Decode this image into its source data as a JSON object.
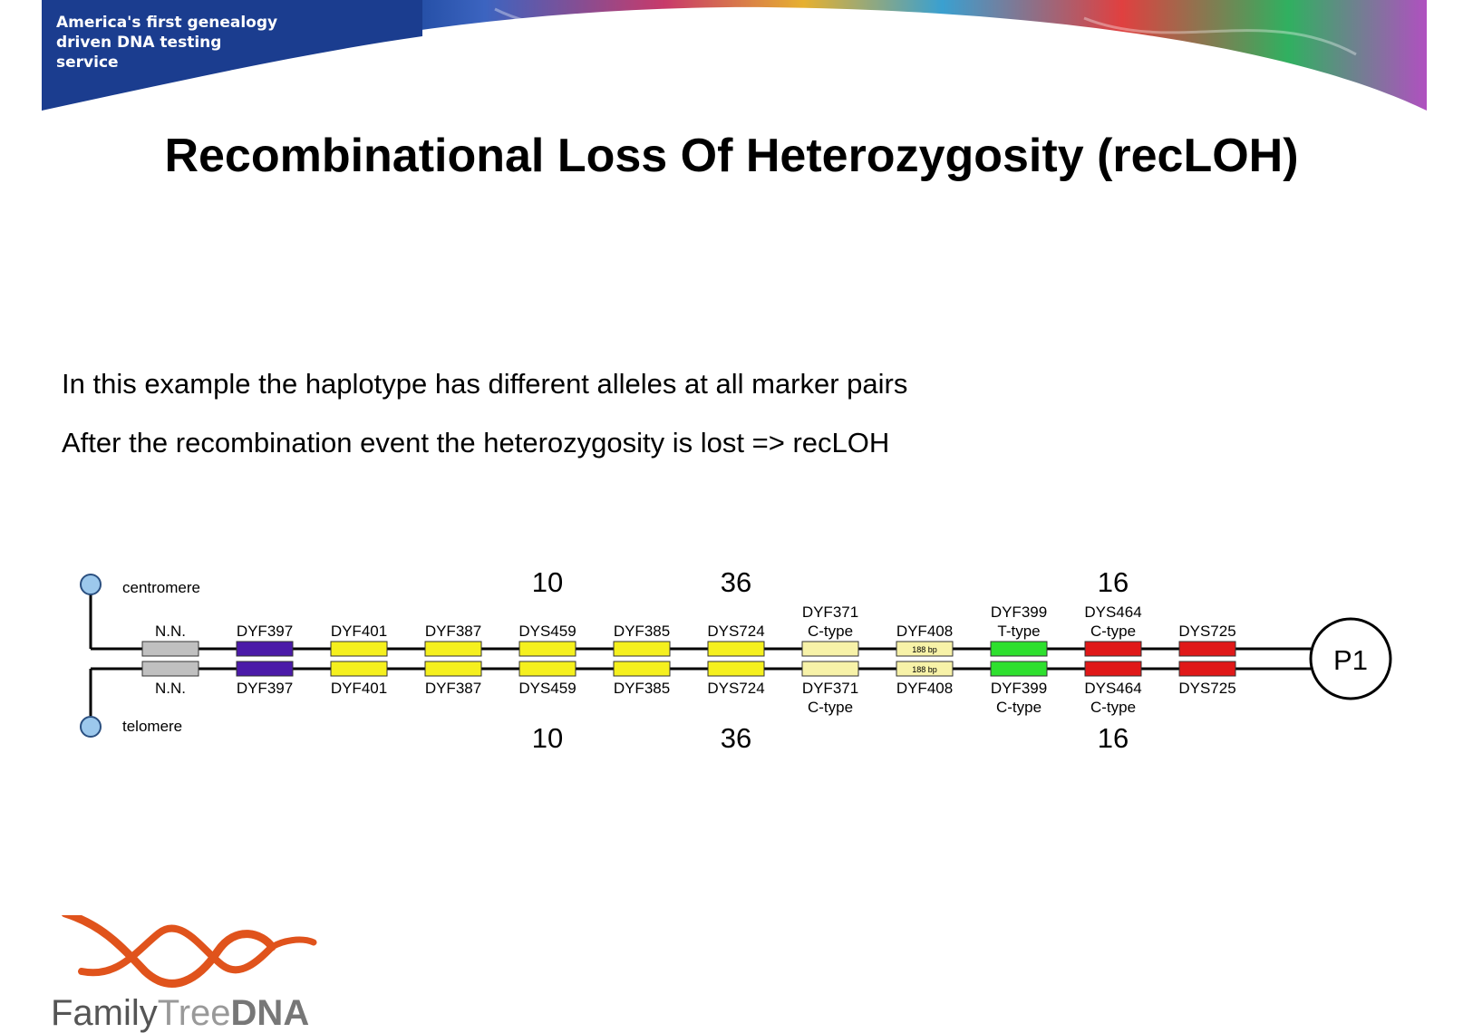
{
  "banner": {
    "tagline": [
      "America's first genealogy",
      "driven DNA testing",
      "service"
    ],
    "colors": {
      "band": "#1b3d8f"
    }
  },
  "title": "Recombinational Loss Of Heterozygosity (recLOH)",
  "body_lines": [
    "In this example the haplotype has different alleles at all marker pairs",
    "After the recombination event the heterozygosity is lost => recLOH"
  ],
  "diagram": {
    "centromere_label": "centromere",
    "telomere_label": "telomere",
    "palindrome_label": "P1",
    "markers": [
      {
        "top": [
          "N.N."
        ],
        "bottom": [
          "N.N."
        ],
        "color": "#c0c0c0",
        "top_value": "",
        "bottom_value": ""
      },
      {
        "top": [
          "DYF397"
        ],
        "bottom": [
          "DYF397"
        ],
        "color": "#4b1aa8",
        "top_value": "",
        "bottom_value": ""
      },
      {
        "top": [
          "DYF401"
        ],
        "bottom": [
          "DYF401"
        ],
        "color": "#f5f01e",
        "top_value": "",
        "bottom_value": ""
      },
      {
        "top": [
          "DYF387"
        ],
        "bottom": [
          "DYF387"
        ],
        "color": "#f5f01e",
        "top_value": "",
        "bottom_value": ""
      },
      {
        "top": [
          "DYS459"
        ],
        "bottom": [
          "DYS459"
        ],
        "color": "#f5f01e",
        "top_value": "10",
        "bottom_value": "10"
      },
      {
        "top": [
          "DYF385"
        ],
        "bottom": [
          "DYF385"
        ],
        "color": "#f5f01e",
        "top_value": "",
        "bottom_value": ""
      },
      {
        "top": [
          "DYS724"
        ],
        "bottom": [
          "DYS724"
        ],
        "color": "#f5f01e",
        "top_value": "36",
        "bottom_value": "36"
      },
      {
        "top": [
          "DYF371",
          "C-type"
        ],
        "bottom": [
          "DYF371",
          "C-type"
        ],
        "color": "#f7f2a8",
        "top_value": "",
        "bottom_value": ""
      },
      {
        "top": [
          "DYF408"
        ],
        "bottom": [
          "DYF408"
        ],
        "color": "#f7f2a8",
        "top_value": "",
        "bottom_value": "",
        "inner_text": "188 bp"
      },
      {
        "top": [
          "DYF399",
          "T-type"
        ],
        "bottom": [
          "DYF399",
          "C-type"
        ],
        "color": "#2ee02e",
        "top_value": "",
        "bottom_value": ""
      },
      {
        "top": [
          "DYS464",
          "C-type"
        ],
        "bottom": [
          "DYS464",
          "C-type"
        ],
        "color": "#e01818",
        "top_value": "16",
        "bottom_value": "16"
      },
      {
        "top": [
          "DYS725"
        ],
        "bottom": [
          "DYS725"
        ],
        "color": "#e01818",
        "top_value": "",
        "bottom_value": ""
      }
    ]
  },
  "logo": {
    "family": "Family",
    "tree": "Tree",
    "dna": "DNA"
  }
}
